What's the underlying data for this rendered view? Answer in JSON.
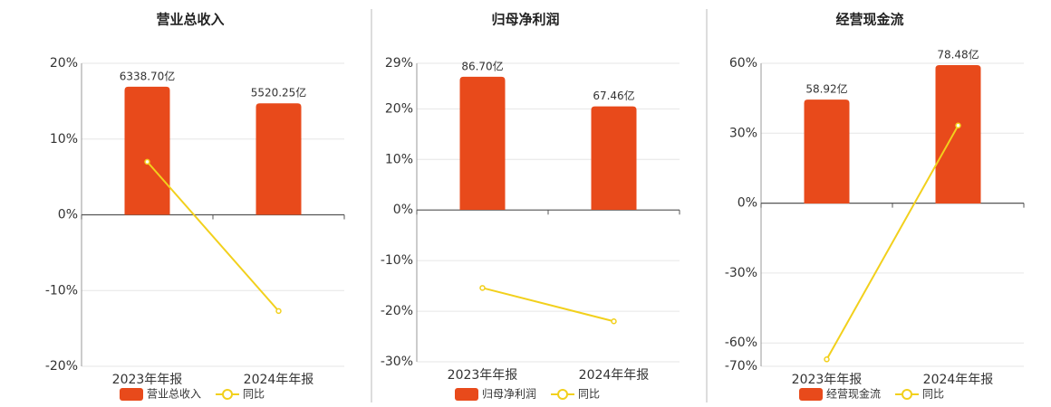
{
  "chart_data": [
    {
      "type": "combo",
      "title": "营业总收入",
      "categories": [
        "2023年年报",
        "2024年年报"
      ],
      "series": [
        {
          "name": "营业总收入",
          "type": "bar",
          "color": "#e84a1b",
          "axis": "y2",
          "values": [
            6338.7,
            5520.25
          ],
          "value_labels": [
            "6338.70亿",
            "5520.25亿"
          ]
        },
        {
          "name": "同比",
          "type": "line",
          "color": "#f2d01c",
          "values": [
            7.0,
            -12.7
          ]
        }
      ],
      "ylim": [
        -20,
        20
      ],
      "yticks": [
        {
          "value": 20,
          "label": "20%"
        },
        {
          "value": 10,
          "label": "10%"
        },
        {
          "value": 0,
          "label": "0%"
        },
        {
          "value": -10,
          "label": "-10%"
        },
        {
          "value": -20,
          "label": "-20%"
        }
      ],
      "y2lim": [
        -7500,
        7500
      ],
      "grid": true
    },
    {
      "type": "combo",
      "title": "归母净利润",
      "categories": [
        "2023年年报",
        "2024年年报"
      ],
      "series": [
        {
          "name": "归母净利润",
          "type": "bar",
          "color": "#e84a1b",
          "axis": "y2",
          "values": [
            86.7,
            67.46
          ],
          "value_labels": [
            "86.70亿",
            "67.46亿"
          ]
        },
        {
          "name": "同比",
          "type": "line",
          "color": "#f2d01c",
          "values": [
            -15.4,
            -22.0
          ]
        }
      ],
      "ylim": [
        -30,
        29
      ],
      "yticks": [
        {
          "value": 29,
          "label": "29%"
        },
        {
          "value": 20,
          "label": "20%"
        },
        {
          "value": 10,
          "label": "10%"
        },
        {
          "value": 0,
          "label": "0%"
        },
        {
          "value": -10,
          "label": "-10%"
        },
        {
          "value": -20,
          "label": "-20%"
        },
        {
          "value": -30,
          "label": "-30%"
        }
      ],
      "y2lim": [
        -99,
        95.5
      ],
      "grid": true
    },
    {
      "type": "combo",
      "title": "经营现金流",
      "categories": [
        "2023年年报",
        "2024年年报"
      ],
      "series": [
        {
          "name": "经营现金流",
          "type": "bar",
          "color": "#e84a1b",
          "axis": "y2",
          "values": [
            58.92,
            78.48
          ],
          "value_labels": [
            "58.92亿",
            "78.48亿"
          ]
        },
        {
          "name": "同比",
          "type": "line",
          "color": "#f2d01c",
          "values": [
            -67.0,
            33.3
          ]
        }
      ],
      "ylim": [
        -70,
        60
      ],
      "yticks": [
        {
          "value": 60,
          "label": "60%"
        },
        {
          "value": 30,
          "label": "30%"
        },
        {
          "value": 0,
          "label": "0%"
        },
        {
          "value": -30,
          "label": "-30%"
        },
        {
          "value": -60,
          "label": "-60%"
        },
        {
          "value": -70,
          "label": "-70%"
        }
      ],
      "y2lim": [
        -92.3,
        79.5
      ],
      "grid": true
    }
  ]
}
